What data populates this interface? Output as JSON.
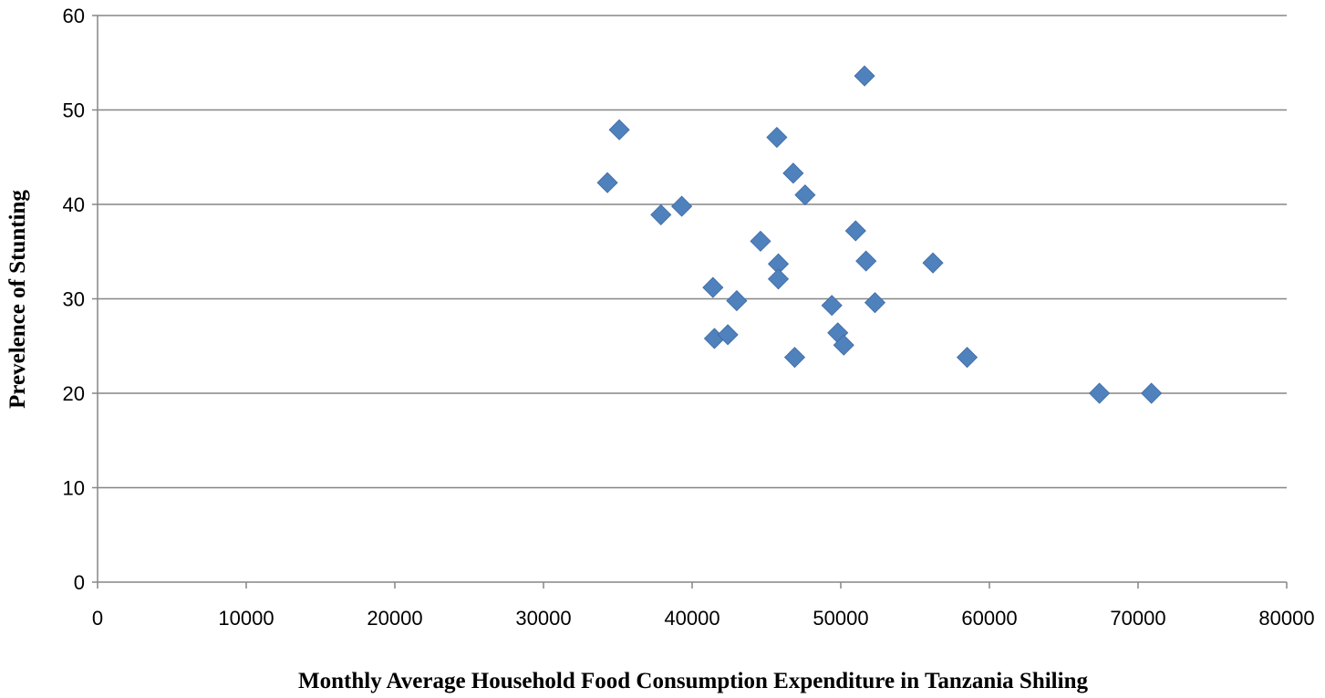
{
  "chart_data": {
    "type": "scatter",
    "title": "",
    "xlabel": "Monthly Average Household Food Consumption Expenditure in Tanzania Shiling",
    "ylabel": "Prevelence of  Stunting",
    "xlim": [
      0,
      80000
    ],
    "ylim": [
      0,
      60
    ],
    "xticks": [
      0,
      10000,
      20000,
      30000,
      40000,
      50000,
      60000,
      70000,
      80000
    ],
    "yticks": [
      0,
      10,
      20,
      30,
      40,
      50,
      60
    ],
    "x_tick_labels": [
      "0",
      "10000",
      "20000",
      "30000",
      "40000",
      "50000",
      "60000",
      "70000",
      "80000"
    ],
    "y_tick_labels": [
      "0",
      "10",
      "20",
      "30",
      "40",
      "50",
      "60"
    ],
    "grid": "horizontal",
    "legend": "none",
    "marker": "diamond",
    "color": "#4f81bd",
    "series": [
      {
        "points": [
          [
            34300,
            42.3
          ],
          [
            35100,
            47.9
          ],
          [
            37900,
            38.9
          ],
          [
            39300,
            39.8
          ],
          [
            41400,
            31.2
          ],
          [
            41500,
            25.8
          ],
          [
            42400,
            26.2
          ],
          [
            43000,
            29.8
          ],
          [
            44600,
            36.1
          ],
          [
            45700,
            47.1
          ],
          [
            45800,
            33.7
          ],
          [
            45800,
            32.1
          ],
          [
            46800,
            43.3
          ],
          [
            46900,
            23.8
          ],
          [
            47600,
            41.0
          ],
          [
            49400,
            29.3
          ],
          [
            49800,
            26.4
          ],
          [
            50200,
            25.1
          ],
          [
            51000,
            37.2
          ],
          [
            51600,
            53.6
          ],
          [
            51700,
            34.0
          ],
          [
            52300,
            29.6
          ],
          [
            56200,
            33.8
          ],
          [
            58500,
            23.8
          ],
          [
            67400,
            20.0
          ],
          [
            70900,
            20.0
          ]
        ]
      }
    ]
  }
}
